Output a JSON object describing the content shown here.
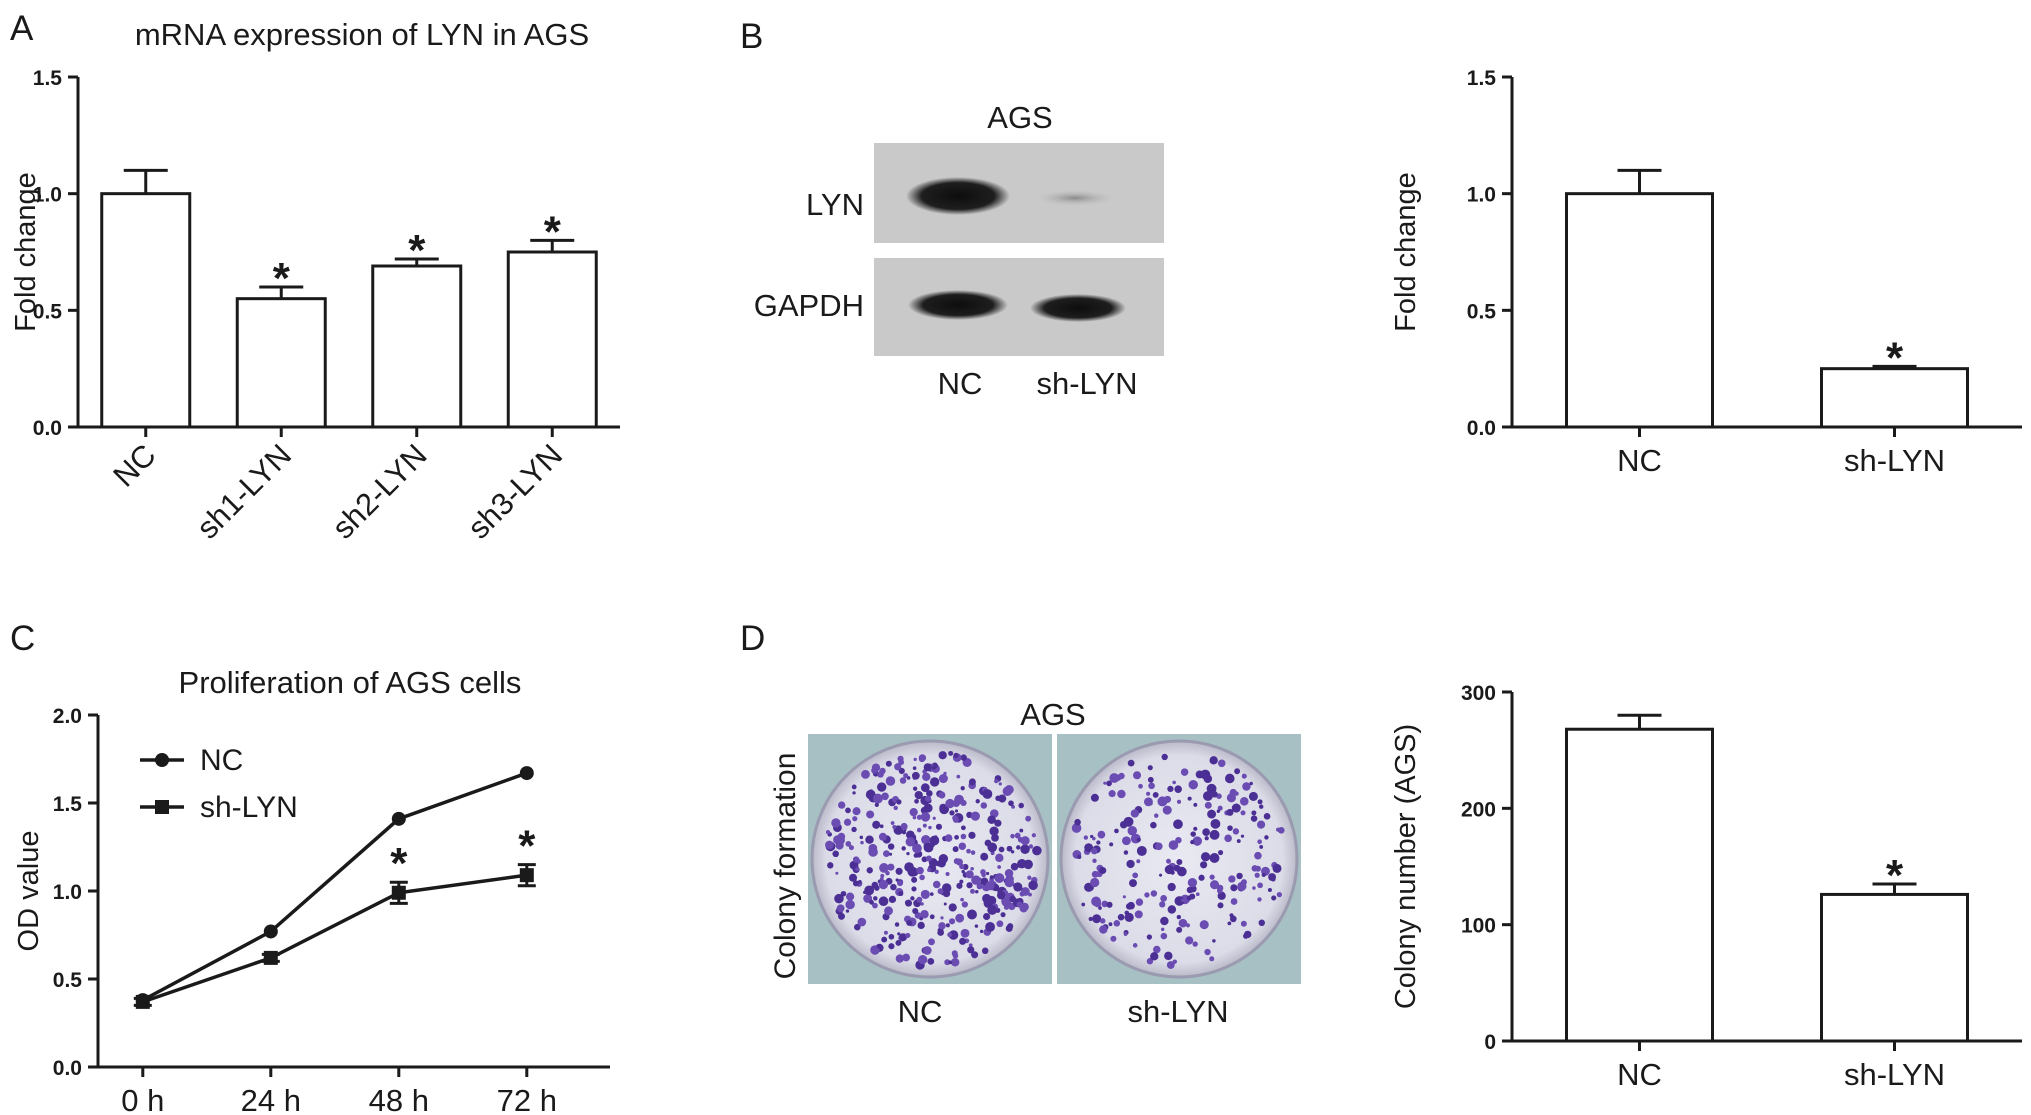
{
  "colors": {
    "ink": "#1a1a1a",
    "bar_fill": "#ffffff",
    "blot_band": "#1c1c1c",
    "dish_stain": "#5b3fa0"
  },
  "panels": {
    "A": {
      "letter": "A"
    },
    "B": {
      "letter": "B",
      "blot_title": "AGS",
      "rows": [
        "LYN",
        "GAPDH"
      ],
      "lanes": [
        "NC",
        "sh-LYN"
      ]
    },
    "C": {
      "letter": "C"
    },
    "D": {
      "letter": "D",
      "image_title": "AGS",
      "side_label": "Colony formation",
      "dishes": [
        "NC",
        "sh-LYN"
      ]
    }
  },
  "chart_data": [
    {
      "id": "A",
      "type": "bar",
      "title": "mRNA expression of LYN in AGS",
      "xlabel": "",
      "ylabel": "Fold change",
      "categories": [
        "NC",
        "sh1-LYN",
        "sh2-LYN",
        "sh3-LYN"
      ],
      "values": [
        1.0,
        0.55,
        0.69,
        0.75
      ],
      "errors": [
        0.1,
        0.05,
        0.03,
        0.05
      ],
      "significance": [
        "",
        "*",
        "*",
        "*"
      ],
      "ylim": [
        0,
        1.5
      ],
      "yticks": [
        "0.0",
        "0.5",
        "1.0",
        "1.5"
      ],
      "grid": false
    },
    {
      "id": "B",
      "type": "bar",
      "title": "",
      "xlabel": "",
      "ylabel": "Fold change",
      "categories": [
        "NC",
        "sh-LYN"
      ],
      "values": [
        1.0,
        0.25
      ],
      "errors": [
        0.1,
        0.01
      ],
      "significance": [
        "",
        "*"
      ],
      "ylim": [
        0,
        1.5
      ],
      "yticks": [
        "0.0",
        "0.5",
        "1.0",
        "1.5"
      ],
      "grid": false
    },
    {
      "id": "C",
      "type": "line",
      "title": "Proliferation of AGS cells",
      "xlabel": "",
      "ylabel": "OD value",
      "x": [
        "0 h",
        "24 h",
        "48 h",
        "72 h"
      ],
      "series": [
        {
          "name": "NC",
          "marker": "circle",
          "values": [
            0.38,
            0.77,
            1.41,
            1.67
          ],
          "errors": [
            0,
            0,
            0,
            0
          ]
        },
        {
          "name": "sh-LYN",
          "marker": "square",
          "values": [
            0.37,
            0.62,
            0.99,
            1.09
          ],
          "errors": [
            0.02,
            0.02,
            0.06,
            0.06
          ]
        }
      ],
      "significance": [
        "",
        "",
        "*",
        "*"
      ],
      "ylim": [
        0,
        2.0
      ],
      "yticks": [
        "0.0",
        "0.5",
        "1.0",
        "1.5",
        "2.0"
      ],
      "legend": "top-left",
      "grid": false
    },
    {
      "id": "D",
      "type": "bar",
      "title": "",
      "xlabel": "",
      "ylabel": "Colony number (AGS)",
      "categories": [
        "NC",
        "sh-LYN"
      ],
      "values": [
        268,
        126
      ],
      "errors": [
        12,
        9
      ],
      "significance": [
        "",
        "*"
      ],
      "ylim": [
        0,
        300
      ],
      "yticks": [
        "0",
        "100",
        "200",
        "300"
      ],
      "grid": false
    }
  ]
}
